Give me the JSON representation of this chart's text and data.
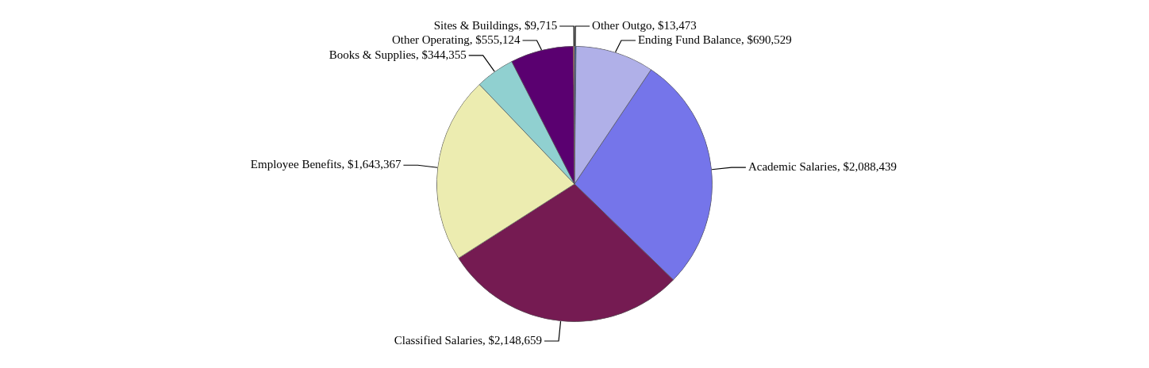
{
  "chart_data": {
    "type": "pie",
    "categories": [
      "Other Outgo",
      "Ending Fund Balance",
      "Academic Salaries",
      "Classified Salaries",
      "Employee Benefits",
      "Books & Supplies",
      "Other Operating",
      "Sites & Buildings"
    ],
    "values": [
      13473,
      690529,
      2088439,
      2148659,
      1643367,
      344355,
      555124,
      9715
    ],
    "value_labels": [
      "$13,473",
      "$690,529",
      "$2,088,439",
      "$2,148,659",
      "$1,643,367",
      "$344,355",
      "$555,124",
      "$9,715"
    ],
    "colors": [
      "#1060a0",
      "#b0b0e8",
      "#7575ea",
      "#751b52",
      "#ececb0",
      "#90d0d0",
      "#5a0070",
      "#f08070"
    ],
    "legend": false
  }
}
